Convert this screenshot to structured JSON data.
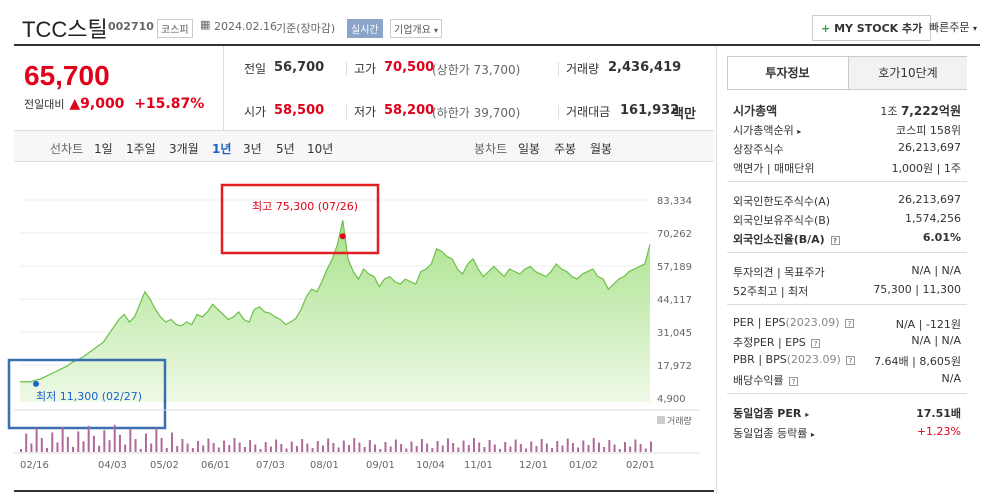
{
  "header": {
    "title": "TCC스틸",
    "code": "002710",
    "market_badge": "코스피",
    "date_text": "2024.02.16",
    "date_suffix": "기준(장마감)",
    "realtime_badge": "실시간",
    "company_overview": "기업개요",
    "my_stock_button": "MY STOCK 추가",
    "quick_order": "빠른주문"
  },
  "price": {
    "current": "65,700",
    "change_label": "전일대비",
    "change_amount": "9,000",
    "change_pct": "+15.87%"
  },
  "quotes": {
    "prev_label": "전일",
    "prev_value": "56,700",
    "high_label": "고가",
    "high_value": "70,500",
    "upper_limit": "(상한가 73,700)",
    "volume_label": "거래량",
    "volume_value": "2,436,419",
    "open_label": "시가",
    "open_value": "58,500",
    "low_label": "저가",
    "low_value": "58,200",
    "lower_limit": "(하한가 39,700)",
    "amount_label": "거래대금",
    "amount_value": "161,932",
    "amount_unit": "백만"
  },
  "chart_toolbar": {
    "line_label": "선차트",
    "periods": [
      "1일",
      "1주일",
      "3개월",
      "1년",
      "3년",
      "5년",
      "10년"
    ],
    "active_period": "1년",
    "candle_label": "봉차트",
    "candle_periods": [
      "일봉",
      "주봉",
      "월봉"
    ]
  },
  "chart_data": {
    "type": "area",
    "y_ticks": [
      "83,334",
      "70,262",
      "57,189",
      "44,117",
      "31,045",
      "17,972",
      "4,900"
    ],
    "ylim": [
      4900,
      83334
    ],
    "x_ticks": [
      "02/16",
      "04/03",
      "05/02",
      "06/01",
      "07/03",
      "08/01",
      "09/01",
      "10/04",
      "11/01",
      "12/01",
      "01/02",
      "02/01"
    ],
    "high_annotation": "최고 75,300 (07/26)",
    "low_annotation": "최저 11,300 (02/27)",
    "volume_label": "거래량",
    "values": [
      11300,
      11400,
      11300,
      12000,
      12500,
      13500,
      14500,
      15500,
      16500,
      17500,
      19000,
      20000,
      21000,
      22500,
      24000,
      25500,
      27000,
      30000,
      33000,
      36000,
      38000,
      35000,
      37000,
      42000,
      47000,
      44000,
      40000,
      37000,
      35000,
      36000,
      34000,
      33500,
      35000,
      34000,
      38000,
      37000,
      39000,
      42000,
      40000,
      38000,
      36000,
      37000,
      39000,
      36000,
      35000,
      40000,
      41000,
      39000,
      38500,
      37000,
      36000,
      34000,
      35000,
      36500,
      40000,
      45000,
      48000,
      47000,
      51000,
      56000,
      60000,
      66000,
      75300,
      60000,
      55000,
      52000,
      56000,
      54000,
      53000,
      49000,
      52000,
      53000,
      51000,
      50000,
      52000,
      51000,
      50000,
      55000,
      56000,
      58000,
      64000,
      63000,
      61000,
      60000,
      56000,
      54000,
      58000,
      60000,
      56000,
      53000,
      55000,
      57000,
      55000,
      53000,
      56000,
      55000,
      54000,
      56000,
      57000,
      55000,
      54000,
      53000,
      55000,
      58000,
      56000,
      55000,
      53000,
      52000,
      54000,
      55000,
      56000,
      53000,
      52000,
      48000,
      50000,
      52000,
      53000,
      55000,
      56000,
      57000,
      58000,
      65700
    ]
  }
}
